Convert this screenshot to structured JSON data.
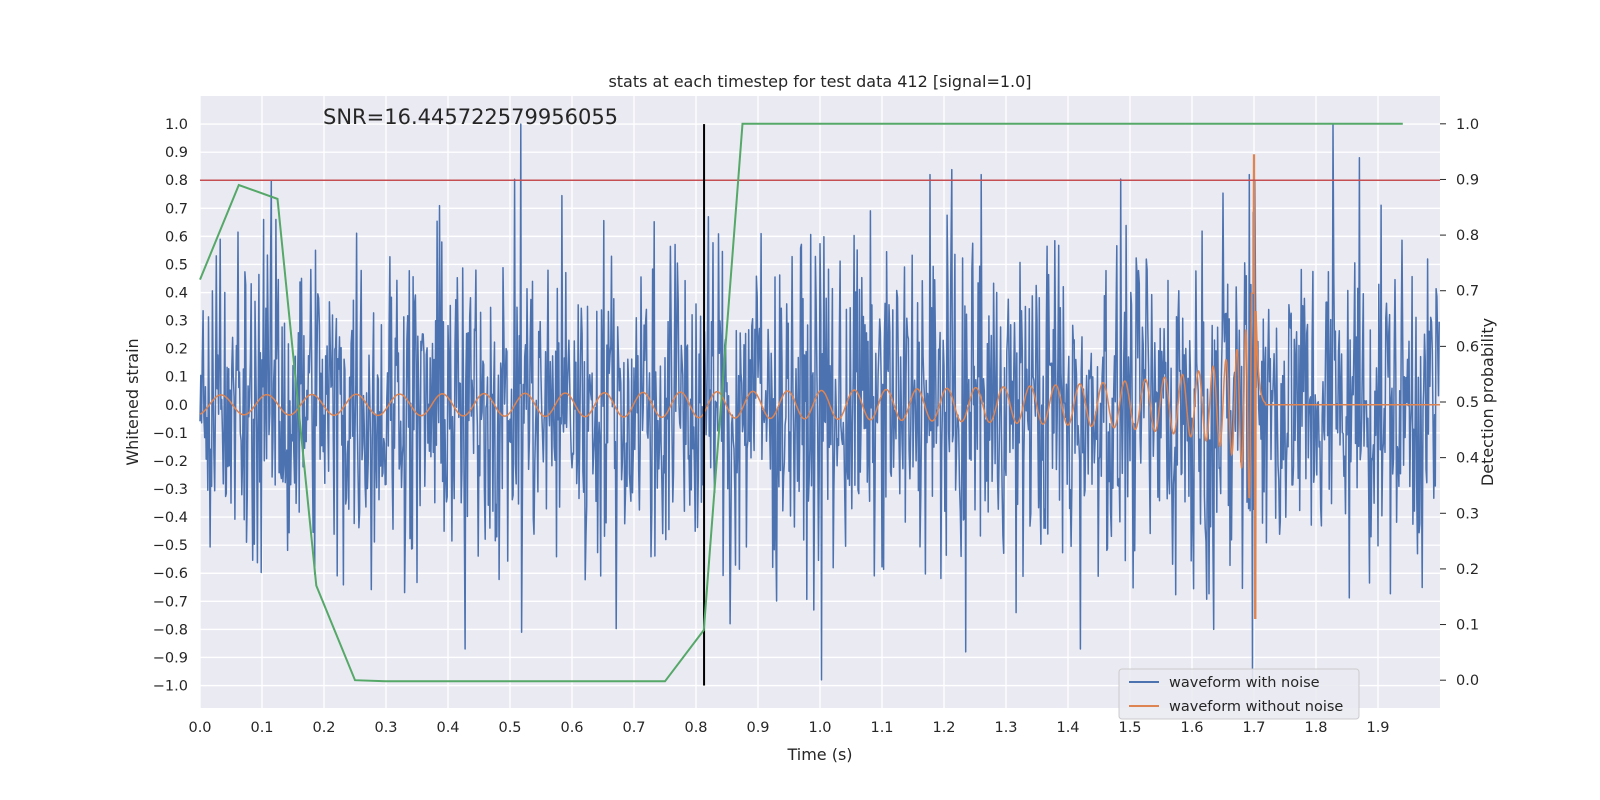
{
  "chart_data": {
    "type": "line",
    "title": "stats at each timestep for test data 412 [signal=1.0]",
    "xlabel": "Time (s)",
    "ylabel": "Whitened strain",
    "y2label": "Detection probability",
    "xlim": [
      0.0,
      2.0
    ],
    "ylim": [
      -1.08,
      1.1
    ],
    "y2lim": [
      -0.05,
      1.05
    ],
    "xticks": [
      0.0,
      0.1,
      0.2,
      0.3,
      0.4,
      0.5,
      0.6,
      0.7,
      0.8,
      0.9,
      1.0,
      1.1,
      1.2,
      1.3,
      1.4,
      1.5,
      1.6,
      1.7,
      1.8,
      1.9
    ],
    "xtick_labels": [
      "0.0",
      "0.1",
      "0.2",
      "0.3",
      "0.4",
      "0.5",
      "0.6",
      "0.7",
      "0.8",
      "0.9",
      "1.0",
      "1.1",
      "1.2",
      "1.3",
      "1.4",
      "1.5",
      "1.6",
      "1.7",
      "1.8",
      "1.9"
    ],
    "yticks": [
      1.0,
      0.9,
      0.8,
      0.7,
      0.6,
      0.5,
      0.4,
      0.3,
      0.2,
      0.1,
      0.0,
      -0.1,
      -0.2,
      -0.3,
      -0.4,
      -0.5,
      -0.6,
      -0.7,
      -0.8,
      -0.9,
      -1.0
    ],
    "ytick_labels": [
      "1.0",
      "0.9",
      "0.8",
      "0.7",
      "0.6",
      "0.5",
      "0.4",
      "0.3",
      "0.2",
      "0.1",
      "0.0",
      "−0.1",
      "−0.2",
      "−0.3",
      "−0.4",
      "−0.5",
      "−0.6",
      "−0.7",
      "−0.8",
      "−0.9",
      "−1.0"
    ],
    "y2ticks": [
      1.0,
      0.9,
      0.8,
      0.7,
      0.6,
      0.5,
      0.4,
      0.3,
      0.2,
      0.1,
      0.0
    ],
    "y2tick_labels": [
      "1.0",
      "0.9",
      "0.8",
      "0.7",
      "0.6",
      "0.5",
      "0.4",
      "0.3",
      "0.2",
      "0.1",
      "0.0"
    ],
    "annotation": "SNR=16.445722579956055",
    "annotation_position": "top-left",
    "threshold_line": {
      "y": 0.8,
      "color": "#c44e52"
    },
    "vertical_marker": {
      "x": 0.813,
      "y_range": [
        -1.0,
        1.0
      ],
      "color": "#000000"
    },
    "series": [
      {
        "name": "waveform with noise",
        "color": "#4c72b0",
        "axis": "left",
        "description": "dense noisy whitened strain, amplitude mostly within ±0.55 with spikes to ±1.0",
        "samples": 1600,
        "amplitude": 0.28,
        "spikes": [
          {
            "x": 0.517,
            "y": 1.0
          },
          {
            "x": 0.519,
            "y": -0.81
          },
          {
            "x": 1.828,
            "y": 1.0
          },
          {
            "x": 1.87,
            "y": 0.88
          },
          {
            "x": 1.177,
            "y": 0.82
          },
          {
            "x": 1.26,
            "y": 0.82
          },
          {
            "x": 1.692,
            "y": 0.82
          },
          {
            "x": 1.698,
            "y": -0.98
          },
          {
            "x": 1.003,
            "y": -0.98
          },
          {
            "x": 0.427,
            "y": -0.87
          },
          {
            "x": 0.102,
            "y": 0.66
          },
          {
            "x": 0.123,
            "y": 0.66
          },
          {
            "x": 0.033,
            "y": 0.59
          },
          {
            "x": 1.42,
            "y": -0.87
          },
          {
            "x": 1.235,
            "y": -0.88
          },
          {
            "x": 1.635,
            "y": -0.8
          },
          {
            "x": 0.905,
            "y": 0.61
          },
          {
            "x": 0.855,
            "y": -0.78
          }
        ]
      },
      {
        "name": "waveform without noise",
        "color": "#dd8452",
        "axis": "left",
        "description": "chirp signal growing in amplitude and frequency, merger near t=1.70 s, flat at 0 afterwards",
        "chirp_merger_time": 1.7,
        "chirp_initial_amplitude": 0.035,
        "chirp_peak_amplitude": 0.89,
        "chirp_min_at_merger": -0.76
      },
      {
        "name": "detection probability",
        "color": "#55a868",
        "axis": "right",
        "x": [
          0.0,
          0.0625,
          0.125,
          0.1875,
          0.25,
          0.3,
          0.75,
          0.8125,
          0.875,
          1.94
        ],
        "y": [
          0.72,
          0.89,
          0.865,
          0.17,
          0.0,
          -0.002,
          -0.002,
          0.09,
          1.0,
          1.0
        ]
      }
    ],
    "legend": {
      "position": "bottom-right",
      "entries": [
        {
          "label": "waveform with noise",
          "color": "#4c72b0"
        },
        {
          "label": "waveform without noise",
          "color": "#dd8452"
        }
      ]
    }
  }
}
